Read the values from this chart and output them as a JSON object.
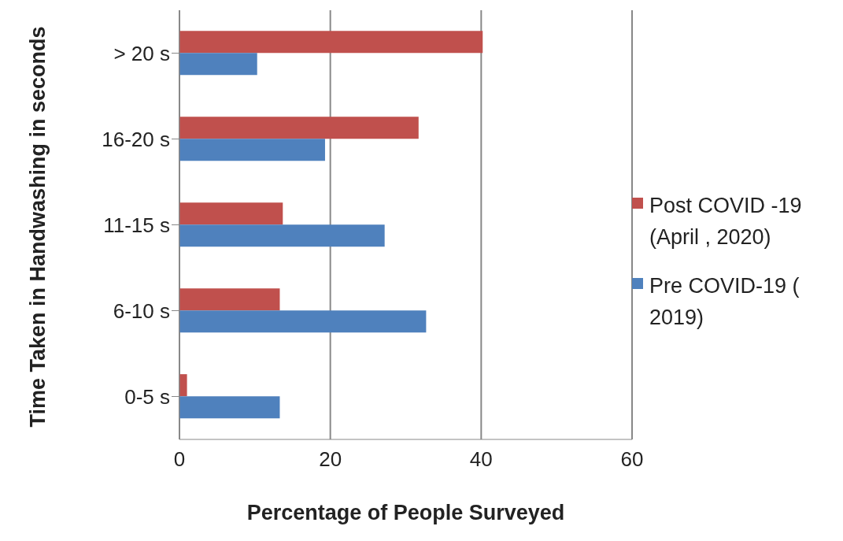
{
  "chart_data": {
    "type": "bar",
    "orientation": "horizontal",
    "xlabel": "Percentage of People Surveyed",
    "ylabel": "Time Taken in Handwashing in seconds",
    "categories": [
      "> 20 s",
      "16-20 s",
      "11-15 s",
      "6-10 s",
      "0-5 s"
    ],
    "series": [
      {
        "name": "Post COVID -19 (April , 2020)",
        "color": "#c0504d",
        "values": [
          40.2,
          31.7,
          13.7,
          13.3,
          1.0
        ]
      },
      {
        "name": "Pre COVID-19 ( 2019)",
        "color": "#4f81bd",
        "values": [
          10.3,
          19.3,
          27.2,
          32.7,
          13.3
        ]
      }
    ],
    "xlim": [
      0,
      60
    ],
    "xticks": [
      0,
      20,
      40,
      60
    ],
    "grid": "x",
    "legend": "right"
  }
}
